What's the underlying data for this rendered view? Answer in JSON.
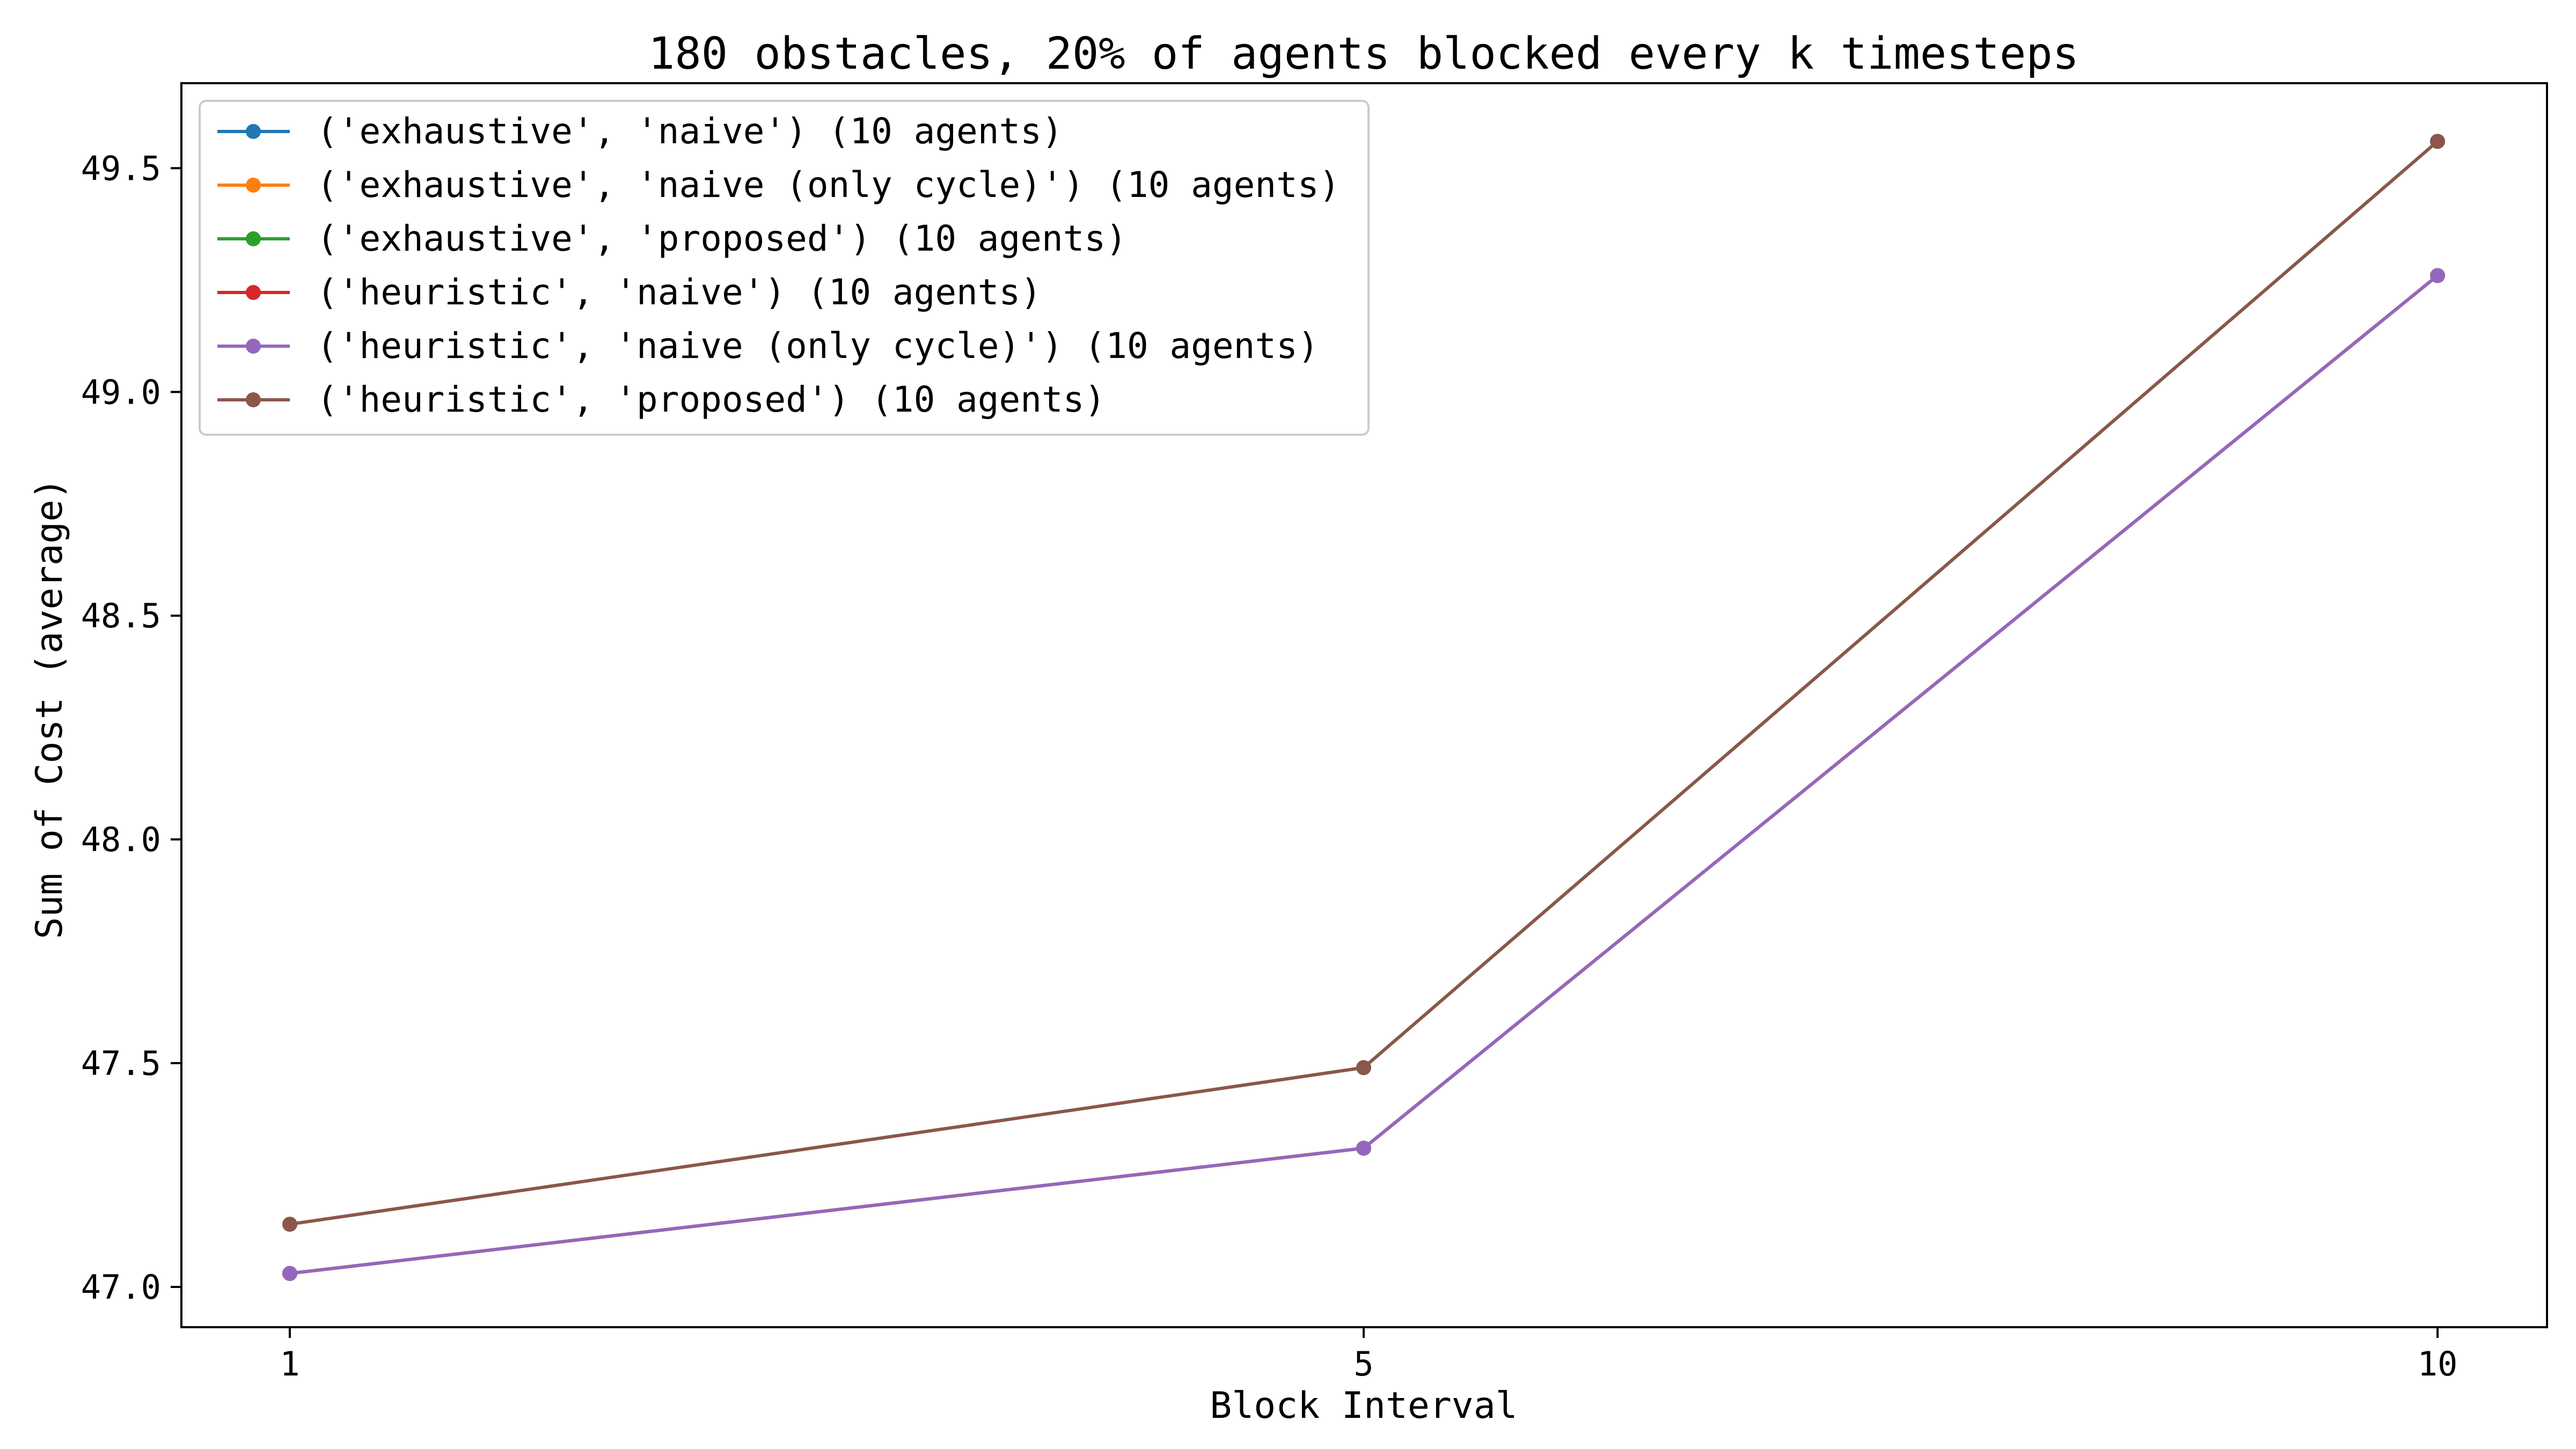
{
  "chart_data": {
    "type": "line",
    "title": "180 obstacles, 20% of agents blocked every k timesteps",
    "xlabel": "Block Interval",
    "ylabel": "Sum of Cost (average)",
    "x": [
      1,
      5,
      10
    ],
    "x_tick_labels": [
      "1",
      "5",
      "10"
    ],
    "y_ticks": [
      47.0,
      47.5,
      48.0,
      48.5,
      49.0,
      49.5
    ],
    "y_tick_labels": [
      "47.0",
      "47.5",
      "48.0",
      "48.5",
      "49.0",
      "49.5"
    ],
    "ylim": [
      46.91,
      49.69
    ],
    "grid": false,
    "legend_placement": "top-left",
    "series": [
      {
        "name": "('exhaustive', 'naive') (10 agents)",
        "color": "#1f77b4",
        "values": [
          47.03,
          47.31,
          49.26
        ]
      },
      {
        "name": "('exhaustive', 'naive (only cycle)') (10 agents)",
        "color": "#ff7f0e",
        "values": [
          47.03,
          47.31,
          49.26
        ]
      },
      {
        "name": "('exhaustive', 'proposed') (10 agents)",
        "color": "#2ca02c",
        "values": [
          47.14,
          47.49,
          49.56
        ]
      },
      {
        "name": "('heuristic', 'naive') (10 agents)",
        "color": "#d62728",
        "values": [
          47.03,
          47.31,
          49.26
        ]
      },
      {
        "name": "('heuristic', 'naive (only cycle)') (10 agents)",
        "color": "#9467bd",
        "values": [
          47.03,
          47.31,
          49.26
        ]
      },
      {
        "name": "('heuristic', 'proposed') (10 agents)",
        "color": "#8c564b",
        "values": [
          47.14,
          47.49,
          49.56
        ]
      }
    ]
  }
}
